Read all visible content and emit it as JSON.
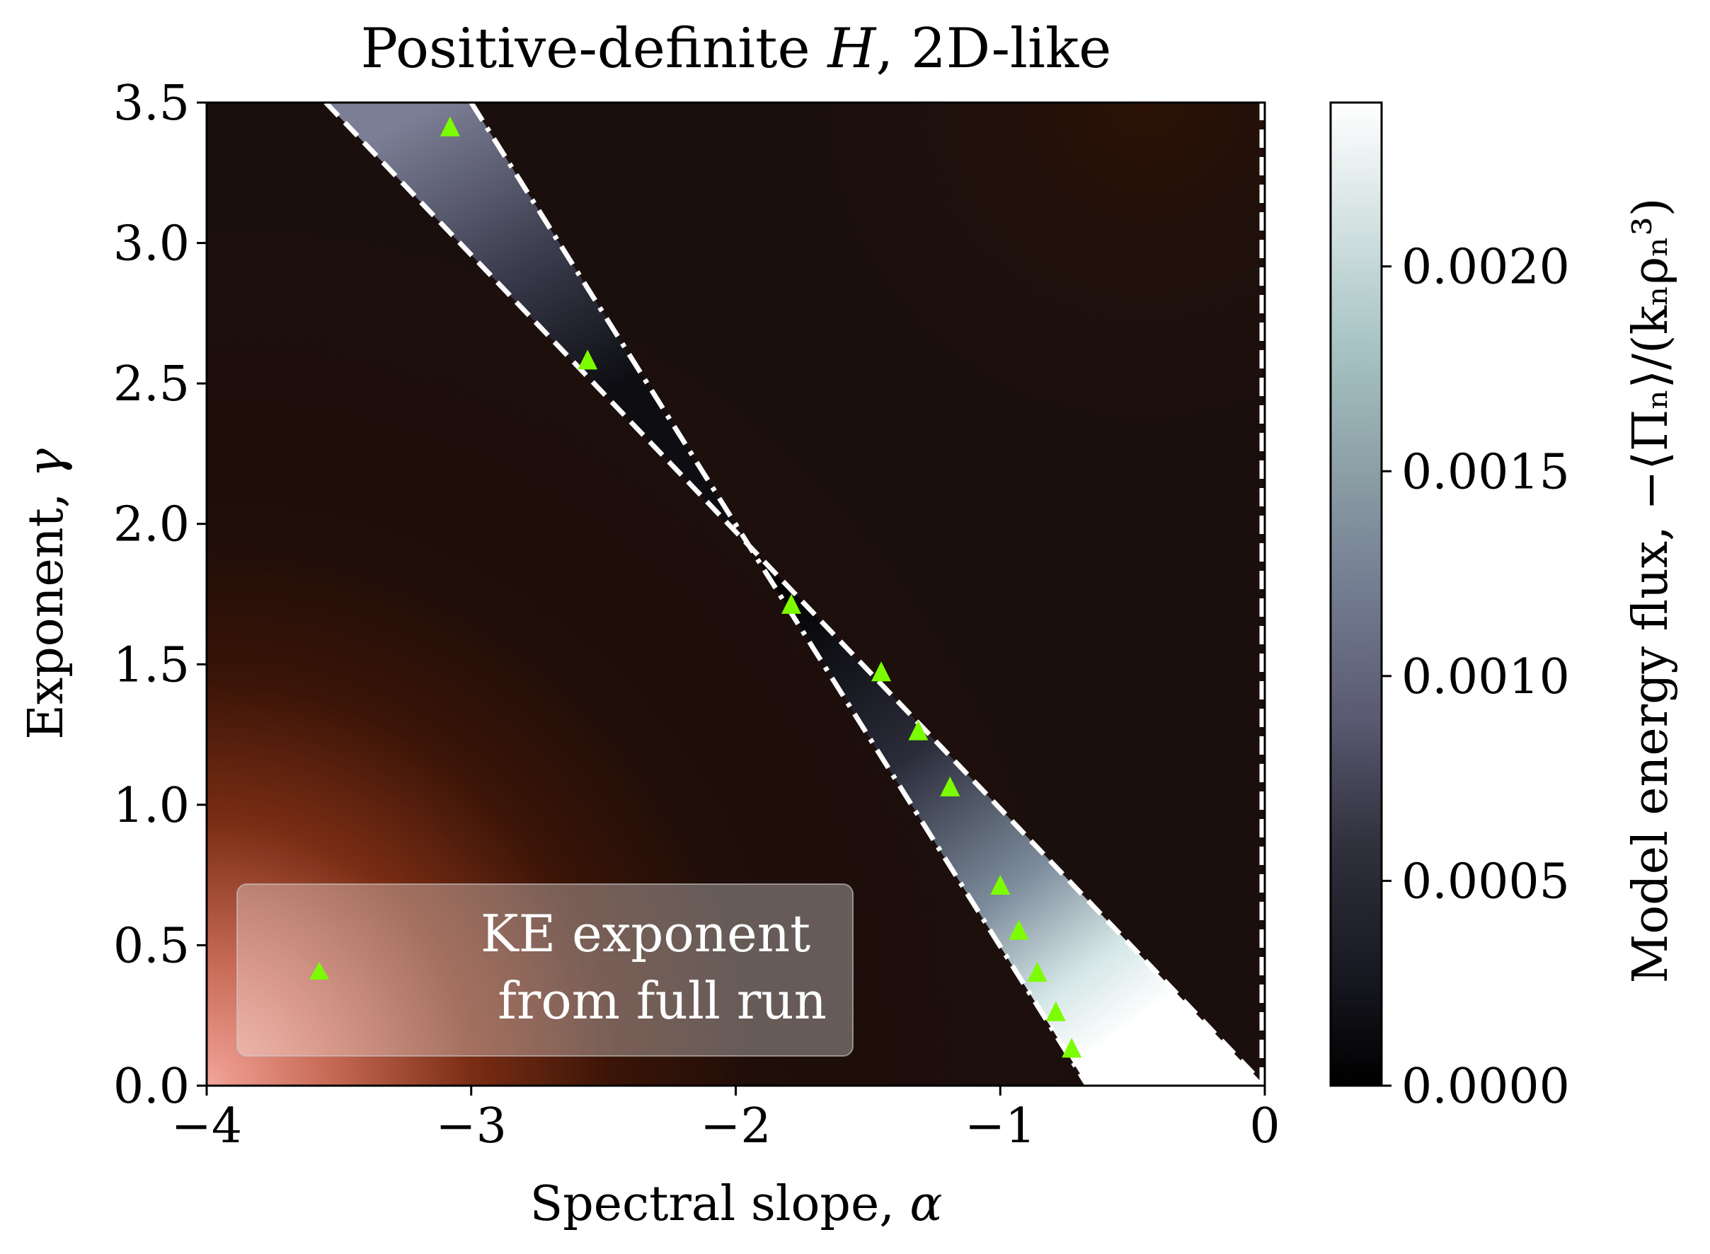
{
  "chart_data": {
    "type": "heatmap",
    "title_prefix": "Positive-definite ",
    "title_math": "H",
    "title_suffix": ", 2D-like",
    "xlabel_text": "Spectral slope, ",
    "xlabel_math": "α",
    "ylabel_text": "Exponent, ",
    "ylabel_math": "γ",
    "xlim": [
      -4,
      0
    ],
    "ylim": [
      0,
      3.5
    ],
    "xticks": [
      -4,
      -3,
      -2,
      -1,
      0
    ],
    "xtick_labels": [
      "−4",
      "−3",
      "−2",
      "−1",
      "0"
    ],
    "yticks": [
      0.0,
      0.5,
      1.0,
      1.5,
      2.0,
      2.5,
      3.0,
      3.5
    ],
    "ytick_labels": [
      "0.0",
      "0.5",
      "1.0",
      "1.5",
      "2.0",
      "2.5",
      "3.0",
      "3.5"
    ],
    "colorbar": {
      "label": "Model energy flux, −⟨Πₙ⟩/(kₙρₙ³)",
      "vmin": 0.0,
      "vmax": 0.0024,
      "ticks": [
        0.0,
        0.0005,
        0.001,
        0.0015,
        0.002
      ],
      "tick_labels": [
        "0.0000",
        "0.0005",
        "0.0010",
        "0.0015",
        "0.0020"
      ],
      "colormap": "bone"
    },
    "boundary_lines": [
      {
        "name": "dashed-line-lower",
        "style": "dashed",
        "points": [
          [
            -3.55,
            3.5
          ],
          [
            0.0,
            0.0
          ]
        ]
      },
      {
        "name": "dashdot-line-upper",
        "style": "dashdot",
        "points": [
          [
            -3.0,
            3.5
          ],
          [
            -0.67,
            0.0
          ]
        ]
      },
      {
        "name": "dashed-line-vertical",
        "style": "dashed",
        "points": [
          [
            0.0,
            0.0
          ],
          [
            0.0,
            3.5
          ]
        ]
      }
    ],
    "series": [
      {
        "name": "KE exponent from full run",
        "marker": "triangle",
        "color": "#7cfc00",
        "points": [
          [
            -3.08,
            3.41
          ],
          [
            -2.56,
            2.58
          ],
          [
            -1.79,
            1.71
          ],
          [
            -1.45,
            1.47
          ],
          [
            -1.31,
            1.26
          ],
          [
            -1.19,
            1.06
          ],
          [
            -1.0,
            0.71
          ],
          [
            -0.93,
            0.55
          ],
          [
            -0.86,
            0.4
          ],
          [
            -0.79,
            0.26
          ],
          [
            -0.73,
            0.13
          ]
        ]
      }
    ],
    "legend": {
      "position": "lower-left",
      "line1": "KE exponent",
      "line2": "from full run"
    }
  },
  "colors": {
    "marker": "#7cfc00",
    "background_dark": "#1d0f0c",
    "background_corner": "#f09a90",
    "band_white": "#ffffff",
    "lines": "#ffffff"
  }
}
